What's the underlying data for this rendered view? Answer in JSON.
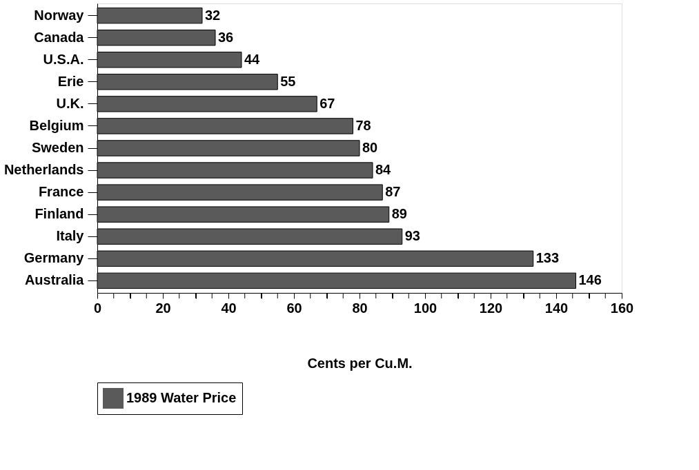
{
  "chart_data": {
    "type": "bar",
    "orientation": "horizontal",
    "xlabel": "Cents per Cu.M.",
    "categories": [
      "Norway",
      "Canada",
      "U.S.A.",
      "Erie",
      "U.K.",
      "Belgium",
      "Sweden",
      "Netherlands",
      "France",
      "Finland",
      "Italy",
      "Germany",
      "Australia"
    ],
    "series": [
      {
        "name": "1989 Water Price",
        "color": "#5a5a5a",
        "values": [
          32,
          36,
          44,
          55,
          67,
          78,
          80,
          84,
          87,
          89,
          93,
          133,
          146
        ]
      }
    ],
    "xlim": [
      0,
      160
    ],
    "xticks": [
      0,
      {
        "value": 5,
        "label": null
      },
      {
        "value": 10,
        "label": null
      },
      {
        "value": 15,
        "label": null
      },
      20,
      {
        "value": 25,
        "label": null
      },
      {
        "value": 30,
        "label": null
      },
      {
        "value": 35,
        "label": null
      },
      40,
      {
        "value": 45,
        "label": null
      },
      {
        "value": 50,
        "label": null
      },
      {
        "value": 55,
        "label": null
      },
      60,
      {
        "value": 65,
        "label": null
      },
      {
        "value": 70,
        "label": null
      },
      {
        "value": 75,
        "label": null
      },
      80,
      {
        "value": 85,
        "label": null
      },
      {
        "value": 90,
        "label": null
      },
      {
        "value": 95,
        "label": null
      },
      100,
      {
        "value": 105,
        "label": null
      },
      {
        "value": 110,
        "label": null
      },
      {
        "value": 115,
        "label": null
      },
      120,
      {
        "value": 125,
        "label": null
      },
      {
        "value": 130,
        "label": null
      },
      {
        "value": 135,
        "label": null
      },
      140,
      {
        "value": 145,
        "label": null
      },
      {
        "value": 150,
        "label": null
      },
      {
        "value": 155,
        "label": null
      },
      160
    ],
    "data_labels": true,
    "grid": false,
    "legend": "bottom"
  }
}
